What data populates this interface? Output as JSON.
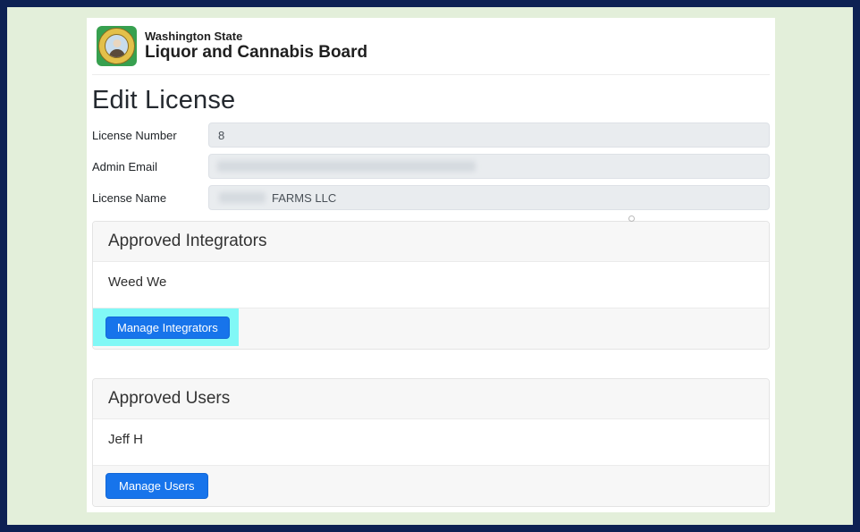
{
  "theme": {
    "frame_border_color": "#0d2153",
    "frame_background_color": "#e3efda",
    "primary_button_color": "#1774eb",
    "highlight_color": "#81f8f6"
  },
  "header": {
    "logo_icon": "washington-state-seal",
    "org_name_line1": "Washington State",
    "org_name_line2": "Liquor and Cannabis Board"
  },
  "main": {
    "title": "Edit License",
    "form": {
      "fields": [
        {
          "label": "License Number",
          "value": "8"
        },
        {
          "label": "Admin Email",
          "value": ""
        },
        {
          "label": "License Name",
          "value": "FARMS LLC"
        }
      ]
    },
    "sections": [
      {
        "title": "Approved Integrators",
        "items": [
          "Weed We"
        ],
        "button_label": "Manage Integrators",
        "highlighted": true
      },
      {
        "title": "Approved Users",
        "items": [
          "Jeff H"
        ],
        "button_label": "Manage Users",
        "highlighted": false
      }
    ]
  },
  "annotation": {
    "type": "highlight-box",
    "target": "Manage Integrators"
  }
}
